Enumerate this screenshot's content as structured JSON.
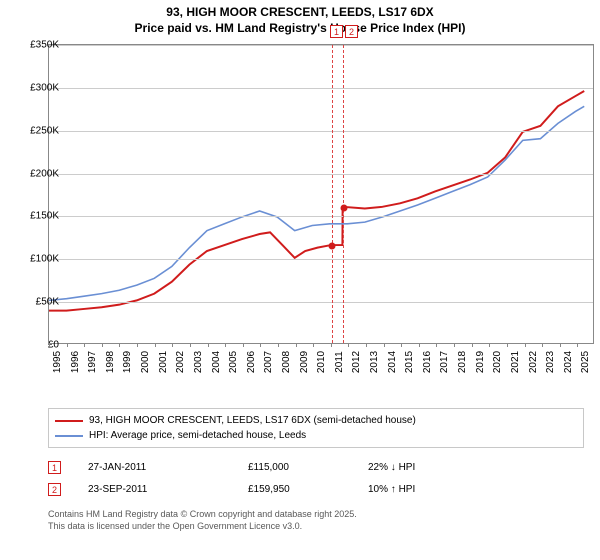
{
  "title": {
    "line1": "93, HIGH MOOR CRESCENT, LEEDS, LS17 6DX",
    "line2": "Price paid vs. HM Land Registry's House Price Index (HPI)",
    "fontsize": 12,
    "fontweight": "bold",
    "color": "#000000"
  },
  "chart": {
    "type": "line",
    "background_color": "#ffffff",
    "grid_color": "#cccccc",
    "border_color": "#888888",
    "xlim": [
      1995,
      2026
    ],
    "ylim": [
      0,
      350000
    ],
    "ytick_step": 50000,
    "ylabels": [
      "£0",
      "£50K",
      "£100K",
      "£150K",
      "£200K",
      "£250K",
      "£300K",
      "£350K"
    ],
    "xticks": [
      1995,
      1996,
      1997,
      1998,
      1999,
      2000,
      2001,
      2002,
      2003,
      2004,
      2005,
      2006,
      2007,
      2008,
      2009,
      2010,
      2011,
      2012,
      2013,
      2014,
      2015,
      2016,
      2017,
      2018,
      2019,
      2020,
      2021,
      2022,
      2023,
      2024,
      2025
    ],
    "label_fontsize": 10,
    "series": [
      {
        "name": "price_paid",
        "legend": "93, HIGH MOOR CRESCENT, LEEDS, LS17 6DX (semi-detached house)",
        "color": "#d01c1c",
        "line_width": 2,
        "points_x": [
          1995,
          1996,
          1997,
          1998,
          1999,
          2000,
          2001,
          2002,
          2003,
          2004,
          2005,
          2006,
          2007,
          2007.6,
          2008.3,
          2009,
          2009.6,
          2010.3,
          2011.07,
          2011.08,
          2011.72,
          2011.73,
          2013,
          2014,
          2015,
          2016,
          2017,
          2018,
          2019,
          2020,
          2021,
          2022,
          2023,
          2024,
          2025,
          2025.5
        ],
        "points_y": [
          38000,
          38000,
          40000,
          42000,
          45000,
          50000,
          58000,
          72000,
          92000,
          108000,
          115000,
          122000,
          128000,
          130000,
          115000,
          100000,
          108000,
          112000,
          115000,
          115000,
          115000,
          159950,
          158000,
          160000,
          164000,
          170000,
          178000,
          185000,
          192000,
          200000,
          218000,
          248000,
          255000,
          278000,
          290000,
          296000
        ]
      },
      {
        "name": "hpi",
        "legend": "HPI: Average price, semi-detached house, Leeds",
        "color": "#6a8fd4",
        "line_width": 1.6,
        "points_x": [
          1995,
          1996,
          1997,
          1998,
          1999,
          2000,
          2001,
          2002,
          2003,
          2004,
          2005,
          2006,
          2007,
          2008,
          2009,
          2010,
          2011,
          2012,
          2013,
          2014,
          2015,
          2016,
          2017,
          2018,
          2019,
          2020,
          2021,
          2022,
          2023,
          2024,
          2025,
          2025.5
        ],
        "points_y": [
          50000,
          52000,
          55000,
          58000,
          62000,
          68000,
          76000,
          90000,
          112000,
          132000,
          140000,
          148000,
          155000,
          148000,
          132000,
          138000,
          140000,
          140000,
          142000,
          148000,
          155000,
          162000,
          170000,
          178000,
          186000,
          195000,
          215000,
          238000,
          240000,
          258000,
          272000,
          278000
        ]
      }
    ],
    "events_band": {
      "x": [
        2011.07,
        2011.73
      ],
      "color": "#d44"
    },
    "event_markers_top": [
      {
        "label": "1",
        "color": "#d01c1c"
      },
      {
        "label": "2",
        "color": "#d01c1c"
      }
    ],
    "sale_points": [
      {
        "x": 2011.07,
        "y": 115000,
        "color": "#d01c1c"
      },
      {
        "x": 2011.73,
        "y": 159950,
        "color": "#d01c1c"
      }
    ]
  },
  "legend": {
    "border_color": "#c8c8c8",
    "fontsize": 10
  },
  "events_table": {
    "rows": [
      {
        "index": "1",
        "date": "27-JAN-2011",
        "price": "£115,000",
        "hpi_delta": "22% ↓ HPI",
        "marker_color": "#d01c1c"
      },
      {
        "index": "2",
        "date": "23-SEP-2011",
        "price": "£159,950",
        "hpi_delta": "10% ↑ HPI",
        "marker_color": "#d01c1c"
      }
    ]
  },
  "footer": {
    "line1": "Contains HM Land Registry data © Crown copyright and database right 2025.",
    "line2": "This data is licensed under the Open Government Licence v3.0.",
    "color": "#595959",
    "fontsize": 9
  }
}
